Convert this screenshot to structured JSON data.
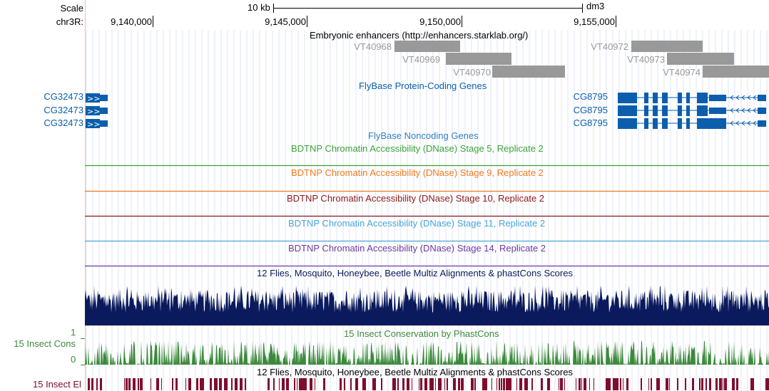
{
  "ruler": {
    "scale_label": "Scale",
    "scale_value": "10 kb",
    "assembly": "dm3",
    "chrom_label": "chr3R:",
    "positions": [
      "9,140,000",
      "9,145,000",
      "9,150,000",
      "9,155,000"
    ]
  },
  "tracks": {
    "enhancers": {
      "title": "Embryonic enhancers (http://enhancers.starklab.org/)",
      "items": [
        "VT40968",
        "VT40969",
        "VT40970",
        "VT40972",
        "VT40973",
        "VT40974"
      ],
      "color": "#999999"
    },
    "protein_coding": {
      "title": "FlyBase Protein-Coding Genes",
      "left_genes": [
        "CG32473",
        "CG32473",
        "CG32473"
      ],
      "right_genes": [
        "CG8795",
        "CG8795",
        "CG8795"
      ],
      "color": "#0b5eac"
    },
    "noncoding": {
      "title": "FlyBase Noncoding Genes",
      "color": "#2f7fc6"
    },
    "dnase": [
      {
        "title": "BDTNP Chromatin Accessibility (DNase) Stage 5, Replicate 2",
        "color": "#3aa33a"
      },
      {
        "title": "BDTNP Chromatin Accessibility (DNase) Stage 9, Replicate 2",
        "color": "#f07a1e"
      },
      {
        "title": "BDTNP Chromatin Accessibility (DNase) Stage 10, Replicate 2",
        "color": "#8b1a1a"
      },
      {
        "title": "BDTNP Chromatin Accessibility (DNase) Stage 11, Replicate 2",
        "color": "#4aa6d6"
      },
      {
        "title": "BDTNP Chromatin Accessibility (DNase) Stage 14, Replicate 2",
        "color": "#6b3aa0"
      }
    ],
    "multiz": {
      "title": "12 Flies, Mosquito, Honeybee, Beetle Multiz Alignments & phastCons Scores",
      "color": "#0a1a5c"
    },
    "phastcons": {
      "title": "15 Insect Conservation by PhastCons",
      "side_label": "15 Insect Cons",
      "axis_max": "1",
      "axis_min": "0",
      "color": "#3c8a3c"
    },
    "elements": {
      "title": "12 Flies, Mosquito, Honeybee, Beetle Multiz Alignments & phastCons Scores",
      "side_label": "15 Insect El",
      "color": "#800c2e"
    }
  }
}
